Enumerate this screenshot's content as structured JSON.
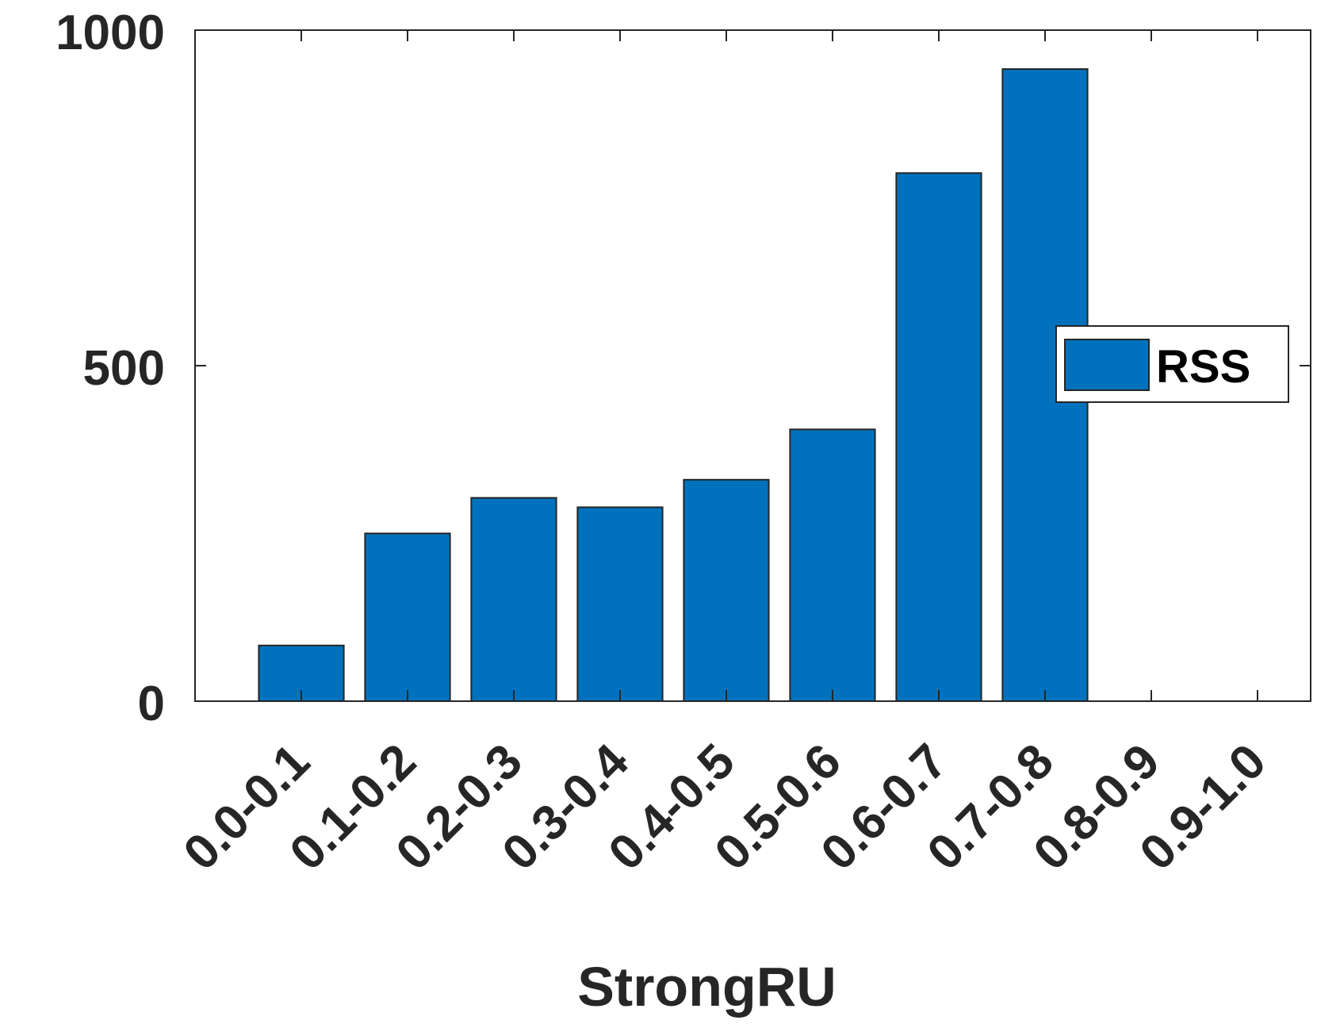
{
  "chart_data": {
    "type": "bar",
    "categories": [
      "0.0-0.1",
      "0.1-0.2",
      "0.2-0.3",
      "0.3-0.4",
      "0.4-0.5",
      "0.5-0.6",
      "0.6-0.7",
      "0.7-0.8",
      "0.8-0.9",
      "0.9-1.0"
    ],
    "series": [
      {
        "name": "RSS",
        "values": [
          83,
          250,
          303,
          289,
          330,
          405,
          787,
          942,
          0,
          0
        ],
        "color": "#0072BD"
      }
    ],
    "xlabel": "StrongRU",
    "ylabel": "",
    "ylim": [
      0,
      1000
    ],
    "yticks": [
      "0",
      "500",
      "1000"
    ],
    "grid": false,
    "legend": {
      "position": "right",
      "entries": [
        "RSS"
      ]
    }
  }
}
